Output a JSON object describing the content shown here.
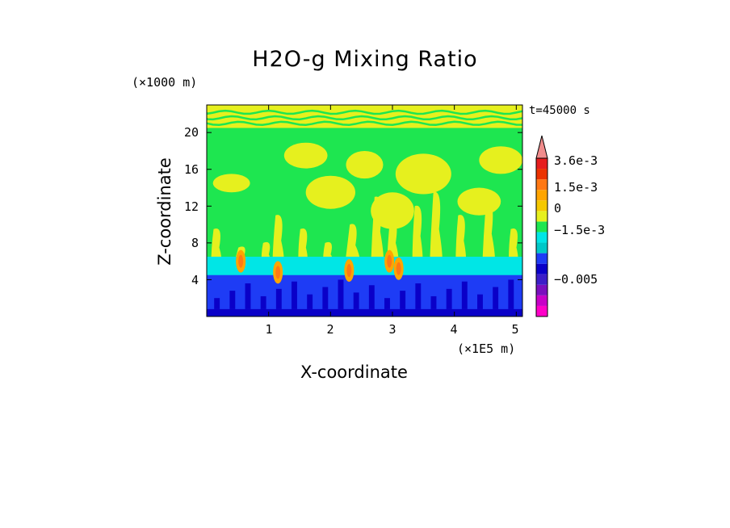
{
  "chart_data": {
    "type": "heatmap",
    "title": "H2O-g Mixing Ratio",
    "xlabel": "X-coordinate",
    "ylabel": "Z-coordinate",
    "x_multiplier": "(×1E5 m)",
    "y_multiplier": "(×1000 m)",
    "time_label": "t=45000 s",
    "x_ticks": [
      {
        "value": 1,
        "label": "1"
      },
      {
        "value": 2,
        "label": "2"
      },
      {
        "value": 3,
        "label": "3"
      },
      {
        "value": 4,
        "label": "4"
      },
      {
        "value": 5,
        "label": "5"
      }
    ],
    "y_ticks": [
      {
        "value": 4,
        "label": "4"
      },
      {
        "value": 8,
        "label": "8"
      },
      {
        "value": 12,
        "label": "12"
      },
      {
        "value": 16,
        "label": "16"
      },
      {
        "value": 20,
        "label": "20"
      }
    ],
    "xlim": [
      0,
      5.1
    ],
    "ylim": [
      0,
      23
    ],
    "colorbar": {
      "levels": [
        {
          "value": -0.0065,
          "color": "#ff00c8"
        },
        {
          "value": -0.004,
          "color": "#c800c8"
        },
        {
          "value": -0.0025,
          "color": "#7a0fbe"
        },
        {
          "value": -0.0019,
          "color": "#3c1ec8"
        },
        {
          "value": -0.0015,
          "color": "#0a00c8"
        },
        {
          "value": -0.001,
          "color": "#1e3cf5"
        },
        {
          "value": -0.0005,
          "color": "#00c8c8"
        },
        {
          "value": 0,
          "color": "#00e6e6"
        },
        {
          "value": 0.0001,
          "color": "#1ee650"
        },
        {
          "value": 0.0005,
          "color": "#e6f01e"
        },
        {
          "value": 0.0009,
          "color": "#f5c800"
        },
        {
          "value": 0.0013,
          "color": "#ffa500"
        },
        {
          "value": 0.0017,
          "color": "#ff7814"
        },
        {
          "value": 0.0022,
          "color": "#eb3200"
        },
        {
          "value": 0.0029,
          "color": "#e61e1e"
        },
        {
          "value": 0.0036,
          "color": "#f08c8c"
        }
      ],
      "labels": [
        {
          "value": 0.0036,
          "label": "3.6e-3"
        },
        {
          "value": 0.0015,
          "label": "1.5e-3"
        },
        {
          "value": 0,
          "label": "0"
        },
        {
          "value": -0.0015,
          "label": "−1.5e-3"
        },
        {
          "value": -0.005,
          "label": "−0.005"
        }
      ]
    },
    "field": {
      "surface_layer": {
        "z_top": 0.8,
        "color": "#0a00c8"
      },
      "lower_band": {
        "z_top": 4.5,
        "color": "#1e3cf5"
      },
      "cyan_band": {
        "z_top": 6.5,
        "color": "#00e6e6"
      },
      "mid_background": {
        "z_top": 20.5,
        "color": "#1ee650"
      },
      "upper_band": {
        "z_top": 23,
        "color": "#e6f01e"
      },
      "plumes": [
        {
          "x": 0.15,
          "z_top": 9.5,
          "width": 0.08
        },
        {
          "x": 0.55,
          "z_top": 7.5,
          "width": 0.12
        },
        {
          "x": 0.95,
          "z_top": 8.0,
          "width": 0.06
        },
        {
          "x": 1.15,
          "z_top": 11.0,
          "width": 0.09
        },
        {
          "x": 1.55,
          "z_top": 9.5,
          "width": 0.07
        },
        {
          "x": 1.95,
          "z_top": 8.0,
          "width": 0.07
        },
        {
          "x": 2.35,
          "z_top": 10.0,
          "width": 0.12
        },
        {
          "x": 2.75,
          "z_top": 13.0,
          "width": 0.1
        },
        {
          "x": 3.0,
          "z_top": 10.5,
          "width": 0.09
        },
        {
          "x": 3.4,
          "z_top": 12.0,
          "width": 0.08
        },
        {
          "x": 3.7,
          "z_top": 13.5,
          "width": 0.1
        },
        {
          "x": 4.1,
          "z_top": 11.0,
          "width": 0.08
        },
        {
          "x": 4.55,
          "z_top": 12.5,
          "width": 0.1
        },
        {
          "x": 4.95,
          "z_top": 9.5,
          "width": 0.07
        }
      ],
      "orange_cores": [
        {
          "x": 0.55,
          "z": 6.0
        },
        {
          "x": 1.15,
          "z": 4.8
        },
        {
          "x": 2.3,
          "z": 5.0
        },
        {
          "x": 2.95,
          "z": 6.0
        },
        {
          "x": 3.1,
          "z": 5.2
        }
      ],
      "yellow_patches": [
        {
          "x": 1.6,
          "z": 17.5,
          "rx": 0.35,
          "rz": 1.4
        },
        {
          "x": 2.0,
          "z": 13.5,
          "rx": 0.4,
          "rz": 1.8
        },
        {
          "x": 2.55,
          "z": 16.5,
          "rx": 0.3,
          "rz": 1.5
        },
        {
          "x": 3.0,
          "z": 11.5,
          "rx": 0.35,
          "rz": 2.0
        },
        {
          "x": 3.5,
          "z": 15.5,
          "rx": 0.45,
          "rz": 2.2
        },
        {
          "x": 4.4,
          "z": 12.5,
          "rx": 0.35,
          "rz": 1.5
        },
        {
          "x": 4.75,
          "z": 17.0,
          "rx": 0.35,
          "rz": 1.5
        },
        {
          "x": 0.4,
          "z": 14.5,
          "rx": 0.3,
          "rz": 1.0
        }
      ]
    }
  }
}
